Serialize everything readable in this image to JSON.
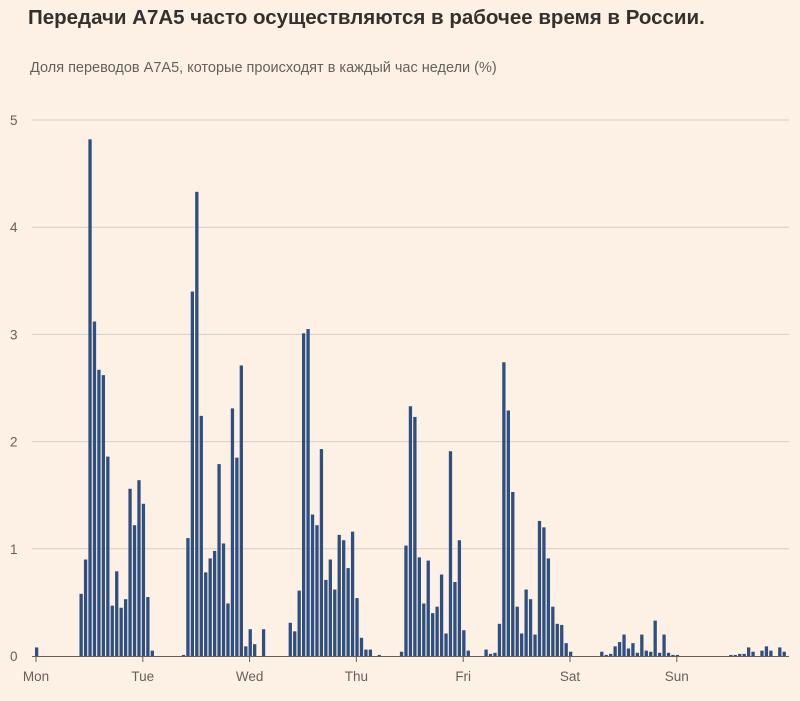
{
  "chart_data": {
    "type": "bar",
    "title": "Передачи А7А5 часто осуществляются в рабочее время в России.",
    "subtitle": "Доля переводов А7А5, которые происходят в каждый час недели (%)",
    "xlabel": "",
    "ylabel": "",
    "ylim": [
      0,
      5
    ],
    "yticks": [
      "0",
      "1",
      "2",
      "3",
      "4",
      "5"
    ],
    "xticks": [
      "Mon",
      "Tue",
      "Wed",
      "Thu",
      "Fri",
      "Sat",
      "Sun"
    ],
    "grid": true,
    "bar_color": "#2e4f7f",
    "categories_note": "hour of week, 0 = Monday 00:00",
    "values": [
      0.08,
      0,
      0,
      0,
      0,
      0,
      0,
      0,
      0,
      0,
      0.58,
      0.9,
      4.82,
      3.12,
      2.67,
      2.62,
      1.86,
      0.47,
      0.79,
      0.45,
      0.53,
      1.56,
      1.22,
      1.64,
      1.42,
      0.55,
      0.05,
      0,
      0,
      0,
      0,
      0,
      0,
      0.01,
      1.1,
      3.4,
      4.33,
      2.24,
      0.78,
      0.91,
      0.98,
      1.79,
      1.05,
      0.49,
      2.31,
      1.85,
      2.71,
      0.09,
      0.25,
      0.11,
      0,
      0.25,
      0,
      0,
      0,
      0,
      0,
      0.31,
      0.23,
      0.61,
      3.01,
      3.05,
      1.32,
      1.22,
      1.93,
      0.71,
      0.9,
      0.62,
      1.13,
      1.08,
      0.82,
      1.16,
      0.54,
      0.17,
      0.06,
      0.06,
      0,
      0.01,
      0,
      0,
      0,
      0,
      0.04,
      1.03,
      2.33,
      2.23,
      0.92,
      0.49,
      0.89,
      0.4,
      0.46,
      0.76,
      0.21,
      1.91,
      0.69,
      1.08,
      0.24,
      0.05,
      0,
      0,
      0,
      0.06,
      0.02,
      0.03,
      0.3,
      2.74,
      2.29,
      1.53,
      0.46,
      0.21,
      0.62,
      0.53,
      0.2,
      1.26,
      1.2,
      0.91,
      0.46,
      0.3,
      0.29,
      0.12,
      0.04,
      0,
      0,
      0,
      0,
      0,
      0,
      0.04,
      0.01,
      0.02,
      0.09,
      0.13,
      0.2,
      0.07,
      0.12,
      0.03,
      0.2,
      0.05,
      0.04,
      0.33,
      0.03,
      0.2,
      0.03,
      0.01,
      0.01,
      0,
      0,
      0,
      0,
      0,
      0,
      0,
      0,
      0,
      0,
      0,
      0.01,
      0.01,
      0.02,
      0.02,
      0.08,
      0.04,
      0,
      0.05,
      0.09,
      0.05,
      0,
      0.08,
      0.04
    ]
  }
}
